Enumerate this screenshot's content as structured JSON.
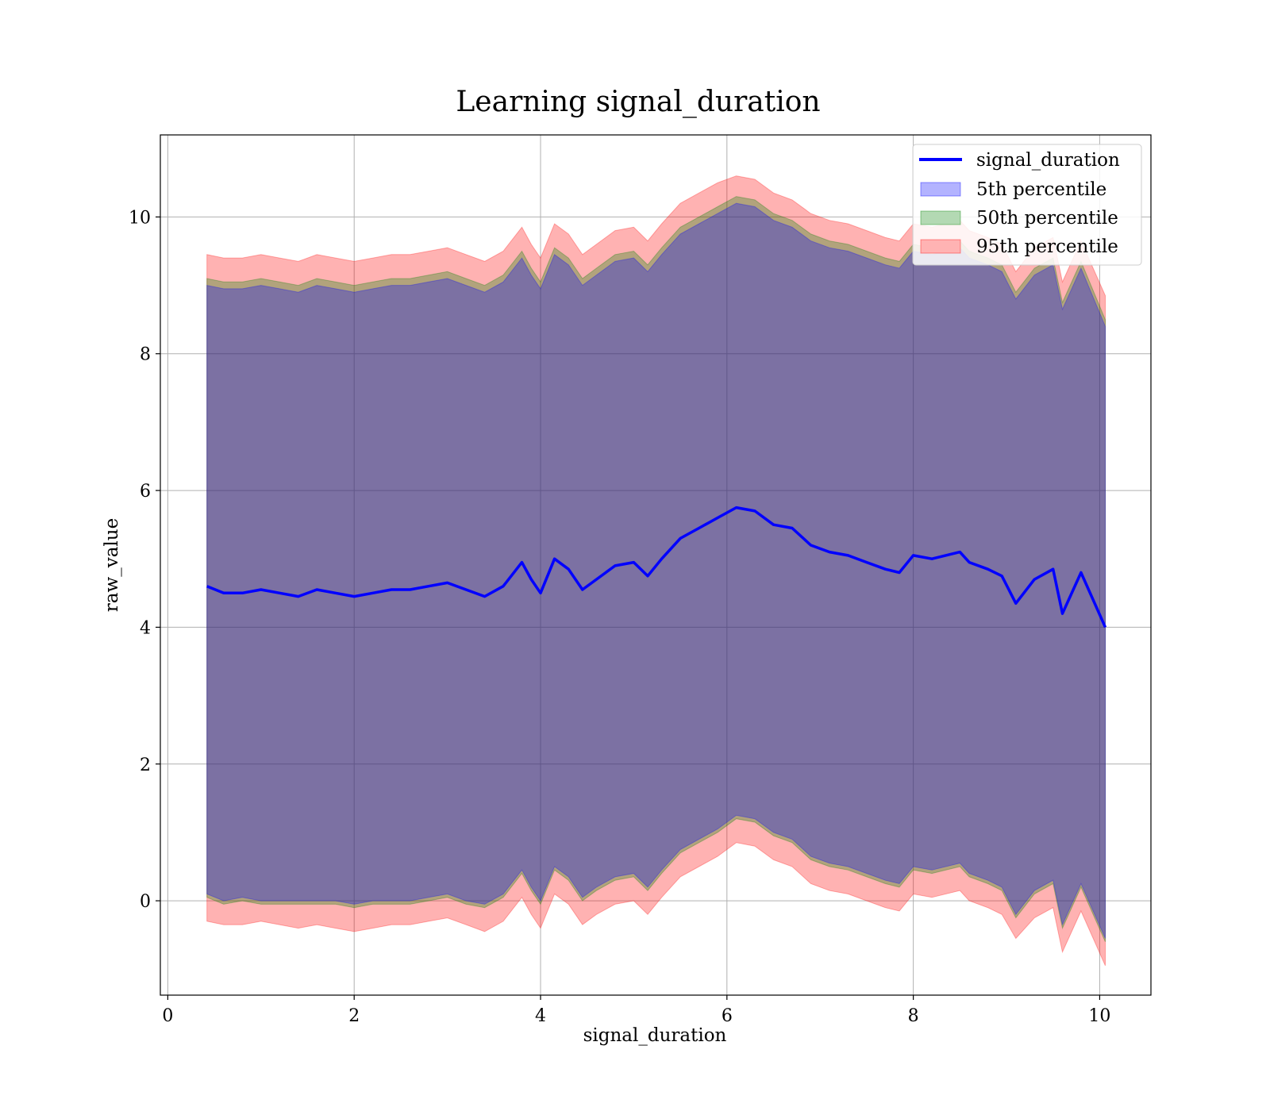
{
  "chart_data": {
    "type": "area",
    "title": "Learning signal_duration",
    "xlabel": "signal_duration",
    "ylabel": "raw_value",
    "xlim": [
      -0.08,
      10.55
    ],
    "ylim": [
      -1.38,
      11.2
    ],
    "xticks": [
      0,
      2,
      4,
      6,
      8,
      10
    ],
    "yticks": [
      0,
      2,
      4,
      6,
      8,
      10
    ],
    "grid": true,
    "legend_position": "top-right",
    "colors": {
      "line": "#0000ff",
      "p5": "#0000ff",
      "p50": "#008000",
      "p95": "#ff0000",
      "line_legend": "#0000ff",
      "p5_legend": "#b3b3ff",
      "p50_legend": "#b3d9b3",
      "p95_legend": "#ffb3b3"
    },
    "series": [
      {
        "name": "signal_duration",
        "kind": "line"
      },
      {
        "name": "5th percentile",
        "kind": "band"
      },
      {
        "name": "50th percentile",
        "kind": "band"
      },
      {
        "name": "95th percentile",
        "kind": "band"
      }
    ],
    "x": [
      0.42,
      0.6,
      0.8,
      1.0,
      1.2,
      1.4,
      1.6,
      1.8,
      2.0,
      2.2,
      2.4,
      2.6,
      2.8,
      3.0,
      3.2,
      3.4,
      3.6,
      3.8,
      3.9,
      4.0,
      4.15,
      4.3,
      4.45,
      4.6,
      4.8,
      5.0,
      5.15,
      5.3,
      5.5,
      5.7,
      5.9,
      6.1,
      6.3,
      6.5,
      6.7,
      6.9,
      7.1,
      7.3,
      7.5,
      7.7,
      7.85,
      8.0,
      8.2,
      8.5,
      8.6,
      8.8,
      8.95,
      9.1,
      9.3,
      9.5,
      9.6,
      9.8,
      10.06
    ],
    "center": [
      4.6,
      4.5,
      4.5,
      4.55,
      4.5,
      4.45,
      4.55,
      4.5,
      4.45,
      4.5,
      4.55,
      4.55,
      4.6,
      4.65,
      4.55,
      4.45,
      4.6,
      4.95,
      4.7,
      4.5,
      5.0,
      4.85,
      4.55,
      4.7,
      4.9,
      4.95,
      4.75,
      5.0,
      5.3,
      5.45,
      5.6,
      5.75,
      5.7,
      5.5,
      5.45,
      5.2,
      5.1,
      5.05,
      4.95,
      4.85,
      4.8,
      5.05,
      5.0,
      5.1,
      4.95,
      4.85,
      4.75,
      4.35,
      4.7,
      4.85,
      4.2,
      4.8,
      4.0
    ],
    "p5_lower": [
      0.1,
      0.0,
      0.05,
      0.0,
      0.0,
      0.0,
      0.0,
      0.0,
      -0.05,
      0.0,
      0.0,
      0.0,
      0.05,
      0.1,
      0.0,
      -0.05,
      0.1,
      0.45,
      0.2,
      0.0,
      0.5,
      0.35,
      0.05,
      0.2,
      0.35,
      0.4,
      0.2,
      0.45,
      0.75,
      0.9,
      1.05,
      1.25,
      1.2,
      1.0,
      0.9,
      0.65,
      0.55,
      0.5,
      0.4,
      0.3,
      0.25,
      0.5,
      0.45,
      0.55,
      0.4,
      0.3,
      0.2,
      -0.2,
      0.15,
      0.3,
      -0.35,
      0.25,
      -0.55
    ],
    "p5_upper": [
      9.0,
      8.95,
      8.95,
      9.0,
      8.95,
      8.9,
      9.0,
      8.95,
      8.9,
      8.95,
      9.0,
      9.0,
      9.05,
      9.1,
      9.0,
      8.9,
      9.05,
      9.4,
      9.15,
      8.95,
      9.45,
      9.3,
      9.0,
      9.15,
      9.35,
      9.4,
      9.2,
      9.45,
      9.75,
      9.9,
      10.05,
      10.2,
      10.15,
      9.95,
      9.85,
      9.65,
      9.55,
      9.5,
      9.4,
      9.3,
      9.25,
      9.5,
      9.45,
      9.55,
      9.4,
      9.3,
      9.2,
      8.8,
      9.15,
      9.3,
      8.65,
      9.25,
      8.4
    ],
    "p50_lower": [
      0.05,
      -0.05,
      0.0,
      -0.05,
      -0.05,
      -0.05,
      -0.05,
      -0.05,
      -0.1,
      -0.05,
      -0.05,
      -0.05,
      0.0,
      0.05,
      -0.05,
      -0.1,
      0.05,
      0.4,
      0.15,
      -0.05,
      0.45,
      0.3,
      0.0,
      0.15,
      0.3,
      0.35,
      0.15,
      0.4,
      0.7,
      0.85,
      1.0,
      1.2,
      1.15,
      0.95,
      0.85,
      0.6,
      0.5,
      0.45,
      0.35,
      0.25,
      0.2,
      0.45,
      0.4,
      0.5,
      0.35,
      0.25,
      0.15,
      -0.25,
      0.1,
      0.25,
      -0.4,
      0.2,
      -0.6
    ],
    "p50_upper": [
      9.1,
      9.05,
      9.05,
      9.1,
      9.05,
      9.0,
      9.1,
      9.05,
      9.0,
      9.05,
      9.1,
      9.1,
      9.15,
      9.2,
      9.1,
      9.0,
      9.15,
      9.5,
      9.25,
      9.05,
      9.55,
      9.4,
      9.1,
      9.25,
      9.45,
      9.5,
      9.3,
      9.55,
      9.85,
      10.0,
      10.15,
      10.3,
      10.25,
      10.05,
      9.95,
      9.75,
      9.65,
      9.6,
      9.5,
      9.4,
      9.35,
      9.6,
      9.55,
      9.65,
      9.5,
      9.4,
      9.3,
      8.9,
      9.25,
      9.4,
      8.75,
      9.35,
      8.5
    ],
    "p95_lower": [
      -0.3,
      -0.35,
      -0.35,
      -0.3,
      -0.35,
      -0.4,
      -0.35,
      -0.4,
      -0.45,
      -0.4,
      -0.35,
      -0.35,
      -0.3,
      -0.25,
      -0.35,
      -0.45,
      -0.3,
      0.05,
      -0.2,
      -0.4,
      0.1,
      -0.05,
      -0.35,
      -0.2,
      -0.05,
      0.0,
      -0.2,
      0.05,
      0.35,
      0.5,
      0.65,
      0.85,
      0.8,
      0.6,
      0.5,
      0.25,
      0.15,
      0.1,
      0.0,
      -0.1,
      -0.15,
      0.1,
      0.05,
      0.15,
      0.0,
      -0.1,
      -0.2,
      -0.55,
      -0.25,
      -0.1,
      -0.75,
      -0.15,
      -0.95
    ],
    "p95_upper": [
      9.45,
      9.4,
      9.4,
      9.45,
      9.4,
      9.35,
      9.45,
      9.4,
      9.35,
      9.4,
      9.45,
      9.45,
      9.5,
      9.55,
      9.45,
      9.35,
      9.5,
      9.85,
      9.6,
      9.4,
      9.9,
      9.75,
      9.45,
      9.6,
      9.8,
      9.85,
      9.65,
      9.9,
      10.2,
      10.35,
      10.5,
      10.6,
      10.55,
      10.35,
      10.25,
      10.05,
      9.95,
      9.9,
      9.8,
      9.7,
      9.65,
      9.9,
      9.85,
      9.95,
      9.8,
      9.7,
      9.6,
      9.2,
      9.55,
      9.7,
      9.05,
      9.65,
      8.85
    ]
  }
}
